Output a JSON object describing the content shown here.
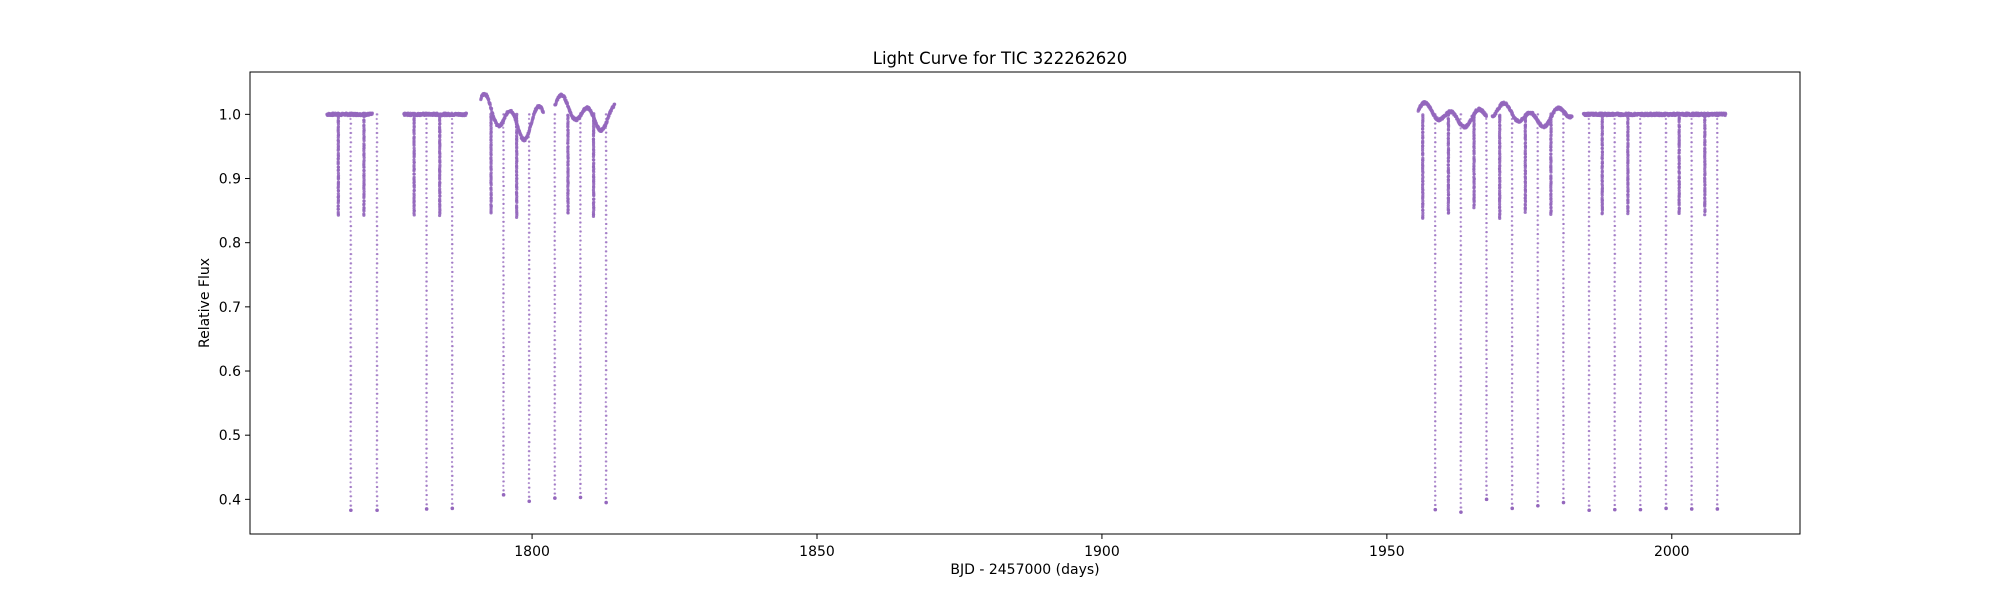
{
  "chart_data": {
    "type": "scatter",
    "title": "Light Curve for TIC 322262620",
    "xlabel": "BJD - 2457000 (days)",
    "ylabel": "Relative Flux",
    "xlim": [
      1750.5,
      2022.5
    ],
    "ylim": [
      0.346,
      1.066
    ],
    "xticks": [
      1800,
      1850,
      1900,
      1950,
      2000
    ],
    "xtick_labels": [
      "1800",
      "1850",
      "1900",
      "1950",
      "2000"
    ],
    "yticks": [
      0.4,
      0.5,
      0.6,
      0.7,
      0.8,
      0.9,
      1.0
    ],
    "ytick_labels": [
      "0.4",
      "0.5",
      "0.6",
      "0.7",
      "0.8",
      "0.9",
      "1.0"
    ],
    "grid": false,
    "legend": "none",
    "marker_color": "#9467bd",
    "segments": [
      {
        "x_start": 1764.0,
        "x_end": 1772.0,
        "baseline": 1.0
      },
      {
        "x_start": 1777.5,
        "x_end": 1788.5,
        "baseline": 1.0
      },
      {
        "x_start": 1791.0,
        "x_end": 1802.0,
        "baseline": 1.0
      },
      {
        "x_start": 1804.0,
        "x_end": 1814.5,
        "baseline": 1.0
      },
      {
        "x_start": 1955.5,
        "x_end": 1967.5,
        "baseline": 1.0
      },
      {
        "x_start": 1968.5,
        "x_end": 1982.5,
        "baseline": 1.0
      },
      {
        "x_start": 1984.5,
        "x_end": 1996.5,
        "baseline": 1.0
      },
      {
        "x_start": 1996.5,
        "x_end": 2009.5,
        "baseline": 1.0
      }
    ],
    "primary_eclipses": [
      {
        "x": 1768.2,
        "depth_min": 0.383
      },
      {
        "x": 1772.8,
        "depth_min": 0.383
      },
      {
        "x": 1781.5,
        "depth_min": 0.385
      },
      {
        "x": 1786.0,
        "depth_min": 0.386
      },
      {
        "x": 1795.0,
        "depth_min": 0.407
      },
      {
        "x": 1799.5,
        "depth_min": 0.397
      },
      {
        "x": 1804.0,
        "depth_min": 0.402
      },
      {
        "x": 1808.5,
        "depth_min": 0.403
      },
      {
        "x": 1813.0,
        "depth_min": 0.395
      },
      {
        "x": 1958.5,
        "depth_min": 0.384
      },
      {
        "x": 1963.0,
        "depth_min": 0.38
      },
      {
        "x": 1967.5,
        "depth_min": 0.4
      },
      {
        "x": 1972.0,
        "depth_min": 0.386
      },
      {
        "x": 1976.5,
        "depth_min": 0.39
      },
      {
        "x": 1981.0,
        "depth_min": 0.395
      },
      {
        "x": 1985.5,
        "depth_min": 0.383
      },
      {
        "x": 1990.0,
        "depth_min": 0.384
      },
      {
        "x": 1994.5,
        "depth_min": 0.384
      },
      {
        "x": 1999.0,
        "depth_min": 0.386
      },
      {
        "x": 2003.5,
        "depth_min": 0.385
      },
      {
        "x": 2008.0,
        "depth_min": 0.385
      }
    ],
    "secondary_eclipses": [
      {
        "x": 1766.0,
        "depth_min": 0.843
      },
      {
        "x": 1770.5,
        "depth_min": 0.843
      },
      {
        "x": 1779.3,
        "depth_min": 0.843
      },
      {
        "x": 1783.8,
        "depth_min": 0.843
      },
      {
        "x": 1792.8,
        "depth_min": 0.845
      },
      {
        "x": 1797.3,
        "depth_min": 0.84
      },
      {
        "x": 1806.3,
        "depth_min": 0.845
      },
      {
        "x": 1810.8,
        "depth_min": 0.84
      },
      {
        "x": 1956.3,
        "depth_min": 0.838
      },
      {
        "x": 1960.8,
        "depth_min": 0.845
      },
      {
        "x": 1965.3,
        "depth_min": 0.855
      },
      {
        "x": 1969.8,
        "depth_min": 0.838
      },
      {
        "x": 1974.3,
        "depth_min": 0.848
      },
      {
        "x": 1978.8,
        "depth_min": 0.843
      },
      {
        "x": 1987.8,
        "depth_min": 0.845
      },
      {
        "x": 1992.3,
        "depth_min": 0.845
      },
      {
        "x": 2001.3,
        "depth_min": 0.845
      },
      {
        "x": 2005.8,
        "depth_min": 0.845
      }
    ],
    "variability_regions": [
      {
        "x_start": 1790.5,
        "x_end": 1802.0,
        "min": 0.96,
        "max": 1.032
      },
      {
        "x_start": 1804.0,
        "x_end": 1814.5,
        "min": 0.975,
        "max": 1.03
      },
      {
        "x_start": 1955.5,
        "x_end": 1982.5,
        "min": 0.98,
        "max": 1.018
      }
    ]
  }
}
